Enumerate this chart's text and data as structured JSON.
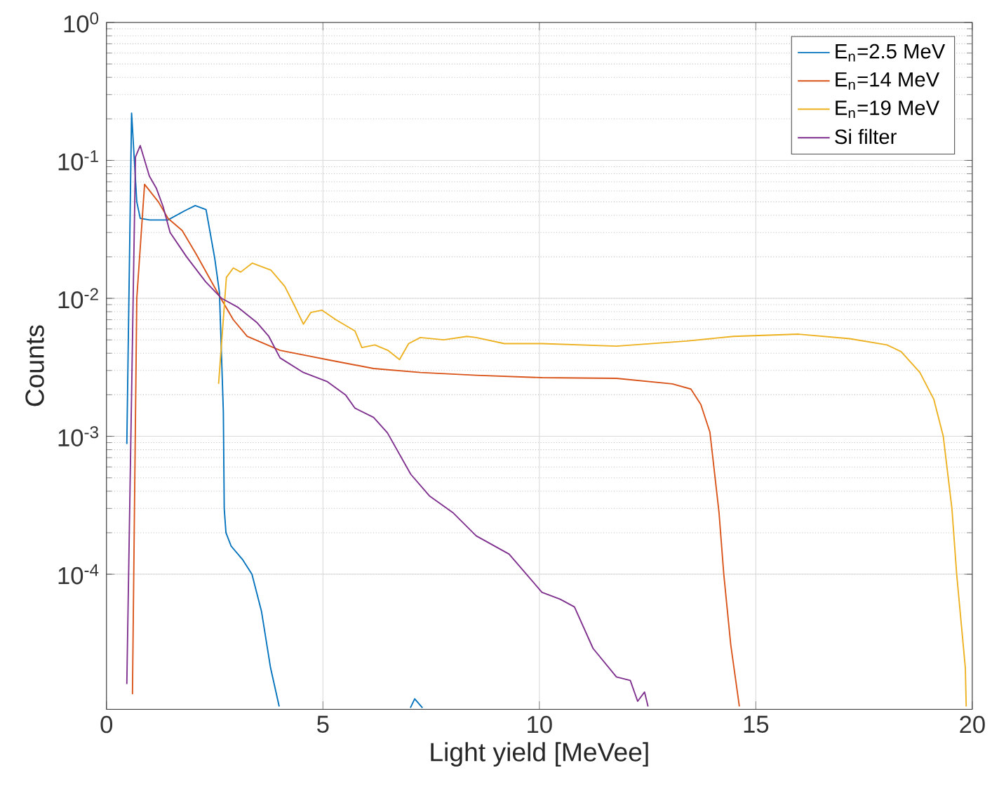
{
  "chart_data": {
    "type": "line",
    "xlabel": "Light yield [MeVee]",
    "ylabel": "Counts",
    "log": "y",
    "grid": true,
    "legend": "top right",
    "xlim": [
      0,
      20
    ],
    "ylim": [
      1.05e-05,
      1
    ],
    "xticks": [
      0,
      5,
      10,
      15,
      20
    ],
    "yticks": [
      {
        "value": 0.0001,
        "label": "10$^{-4}$"
      },
      {
        "value": 0.001,
        "label": "10$^{-3}$"
      },
      {
        "value": 0.01,
        "label": "10$^{-2}$"
      },
      {
        "value": 0.1,
        "label": "10$^{-1}$"
      },
      {
        "value": 1,
        "label": "10$^{0}$"
      }
    ],
    "series": [
      {
        "name": "E$_{n}$=2.5 MeV",
        "color": "#0072bd",
        "x": [
          0.47,
          0.58,
          0.7,
          0.78,
          1.0,
          1.42,
          1.8,
          2.05,
          2.3,
          2.5,
          2.61,
          2.7,
          2.72,
          2.76,
          2.88,
          3.15,
          3.36,
          3.58,
          3.79,
          3.99,
          5.0,
          7.02,
          7.12,
          7.3
        ],
        "values": [
          0.00088,
          0.22,
          0.05,
          0.038,
          0.037,
          0.037,
          0.043,
          0.047,
          0.044,
          0.0196,
          0.011,
          0.0015,
          0.0003,
          0.0002,
          0.00016,
          0.000127,
          0.0001,
          5.4e-05,
          2.1e-05,
          1.1e-05,
          null,
          1.075e-05,
          1.25e-05,
          1.075e-05
        ]
      },
      {
        "name": "E$_{n}$=14 MeV",
        "color": "#d95319",
        "x": [
          0.6,
          0.7,
          0.88,
          1.2,
          1.42,
          1.75,
          2.07,
          2.61,
          2.93,
          3.25,
          4.01,
          5.09,
          6.17,
          7.25,
          8.54,
          10.06,
          11.78,
          13.07,
          13.5,
          13.73,
          13.94,
          14.15,
          14.26,
          14.42,
          14.62
        ],
        "values": [
          1.35e-05,
          0.01,
          0.067,
          0.05,
          0.038,
          0.031,
          0.021,
          0.0104,
          0.007,
          0.0053,
          0.0042,
          0.0036,
          0.0031,
          0.0029,
          0.00277,
          0.00266,
          0.00263,
          0.0024,
          0.0022,
          0.0017,
          0.00107,
          0.00028,
          0.0001,
          3.1e-05,
          1.1e-05
        ]
      },
      {
        "name": "E$_{n}$=19 MeV",
        "color": "#edb120",
        "x": [
          2.59,
          2.77,
          2.93,
          3.1,
          3.37,
          3.8,
          4.12,
          4.34,
          4.55,
          4.72,
          4.98,
          5.3,
          5.74,
          5.9,
          6.2,
          6.5,
          6.77,
          6.98,
          7.25,
          7.79,
          8.33,
          8.54,
          9.19,
          10.06,
          11.78,
          13.4,
          14.48,
          15.99,
          17.17,
          18.03,
          18.36,
          18.79,
          19.11,
          19.33,
          19.53,
          19.64,
          19.84,
          19.86
        ],
        "values": [
          0.0024,
          0.0142,
          0.0166,
          0.0155,
          0.018,
          0.016,
          0.0122,
          0.0089,
          0.0065,
          0.0079,
          0.0082,
          0.007,
          0.0058,
          0.0044,
          0.0046,
          0.0042,
          0.0036,
          0.0047,
          0.0052,
          0.005,
          0.0053,
          0.0052,
          0.0047,
          0.0047,
          0.0045,
          0.0049,
          0.0053,
          0.0055,
          0.0051,
          0.0046,
          0.0041,
          0.0029,
          0.00186,
          0.001,
          0.0003,
          0.0001,
          2.1e-05,
          1.1e-05
        ]
      },
      {
        "name": "Si filter",
        "color": "#7e2f8e",
        "x": [
          0.47,
          0.67,
          0.78,
          0.99,
          1.15,
          1.31,
          1.47,
          1.85,
          2.29,
          2.66,
          3.04,
          3.47,
          3.75,
          4.01,
          4.55,
          5.09,
          5.52,
          5.74,
          6.17,
          6.49,
          7.03,
          7.46,
          8.0,
          8.54,
          9.3,
          10.06,
          10.48,
          10.81,
          11.24,
          11.78,
          12.1,
          12.27,
          12.43,
          12.51
        ],
        "values": [
          1.6e-05,
          0.106,
          0.128,
          0.077,
          0.063,
          0.046,
          0.03,
          0.02,
          0.0132,
          0.01,
          0.0086,
          0.0067,
          0.0053,
          0.0037,
          0.0029,
          0.0025,
          0.002,
          0.0016,
          0.00137,
          0.00106,
          0.00053,
          0.00037,
          0.00028,
          0.00019,
          0.00014,
          7.4e-05,
          6.6e-05,
          5.8e-05,
          2.9e-05,
          1.8e-05,
          1.7e-05,
          1.2e-05,
          1.4e-05,
          1.1e-05
        ]
      }
    ]
  }
}
